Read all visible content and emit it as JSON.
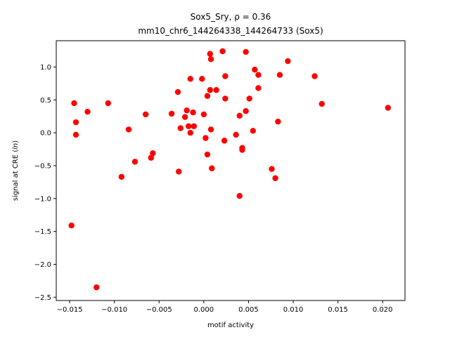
{
  "chart_data": {
    "type": "scatter",
    "title_line1": "Sox5_Sry, ρ = 0.36",
    "title_line2": "mm10_chr6_144264338_144264733 (Sox5)",
    "xlabel": "motif activity",
    "ylabel": "signal at CRE (ln)",
    "xlim": [
      -0.0165,
      0.0225
    ],
    "ylim": [
      -2.55,
      1.4
    ],
    "xticks": [
      -0.015,
      -0.01,
      -0.005,
      0.0,
      0.005,
      0.01,
      0.015,
      0.02
    ],
    "xtick_labels": [
      "−0.015",
      "−0.010",
      "−0.005",
      "0.000",
      "0.005",
      "0.010",
      "0.015",
      "0.020"
    ],
    "yticks": [
      -2.5,
      -2.0,
      -1.5,
      -1.0,
      -0.5,
      0.0,
      0.5,
      1.0
    ],
    "ytick_labels": [
      "−2.5",
      "−2.0",
      "−1.5",
      "−1.0",
      "−0.5",
      "0.0",
      "0.5",
      "1.0"
    ],
    "grid": false,
    "marker_color": "#ff0000",
    "points": [
      {
        "x": -0.0148,
        "y": -1.41
      },
      {
        "x": -0.0145,
        "y": 0.45
      },
      {
        "x": -0.0143,
        "y": 0.16
      },
      {
        "x": -0.0143,
        "y": -0.03
      },
      {
        "x": -0.013,
        "y": 0.32
      },
      {
        "x": -0.012,
        "y": -2.35
      },
      {
        "x": -0.0107,
        "y": 0.45
      },
      {
        "x": -0.0092,
        "y": -0.67
      },
      {
        "x": -0.0084,
        "y": 0.05
      },
      {
        "x": -0.0077,
        "y": -0.44
      },
      {
        "x": -0.0065,
        "y": 0.28
      },
      {
        "x": -0.0059,
        "y": -0.38
      },
      {
        "x": -0.0057,
        "y": -0.31
      },
      {
        "x": -0.0036,
        "y": 0.29
      },
      {
        "x": -0.0029,
        "y": 0.62
      },
      {
        "x": -0.0028,
        "y": -0.59
      },
      {
        "x": -0.0026,
        "y": 0.07
      },
      {
        "x": -0.0021,
        "y": 0.24
      },
      {
        "x": -0.0019,
        "y": 0.34
      },
      {
        "x": -0.0017,
        "y": 0.1
      },
      {
        "x": -0.0015,
        "y": 0.82
      },
      {
        "x": -0.0015,
        "y": 0.0
      },
      {
        "x": -0.0012,
        "y": 0.31
      },
      {
        "x": -0.0011,
        "y": 0.1
      },
      {
        "x": -0.0002,
        "y": 0.82
      },
      {
        "x": 0.0,
        "y": 0.28
      },
      {
        "x": 0.0002,
        "y": -0.08
      },
      {
        "x": 0.0004,
        "y": 0.56
      },
      {
        "x": 0.0004,
        "y": -0.33
      },
      {
        "x": 0.0007,
        "y": 1.2
      },
      {
        "x": 0.0007,
        "y": 0.65
      },
      {
        "x": 0.0008,
        "y": 1.12
      },
      {
        "x": 0.0008,
        "y": 0.05
      },
      {
        "x": 0.0009,
        "y": -0.54
      },
      {
        "x": 0.0014,
        "y": 0.65
      },
      {
        "x": 0.0021,
        "y": 1.24
      },
      {
        "x": 0.0023,
        "y": -0.12
      },
      {
        "x": 0.0024,
        "y": 0.86
      },
      {
        "x": 0.0024,
        "y": 0.52
      },
      {
        "x": 0.0036,
        "y": -0.03
      },
      {
        "x": 0.004,
        "y": 0.26
      },
      {
        "x": 0.004,
        "y": -0.96
      },
      {
        "x": 0.0043,
        "y": -0.23
      },
      {
        "x": 0.0043,
        "y": -0.26
      },
      {
        "x": 0.0047,
        "y": 1.23
      },
      {
        "x": 0.0047,
        "y": 0.33
      },
      {
        "x": 0.0051,
        "y": 0.52
      },
      {
        "x": 0.0055,
        "y": 0.03
      },
      {
        "x": 0.0057,
        "y": 0.96
      },
      {
        "x": 0.0061,
        "y": 0.88
      },
      {
        "x": 0.0061,
        "y": 0.68
      },
      {
        "x": 0.0076,
        "y": -0.55
      },
      {
        "x": 0.008,
        "y": -0.69
      },
      {
        "x": 0.0083,
        "y": 0.17
      },
      {
        "x": 0.0085,
        "y": 0.88
      },
      {
        "x": 0.0094,
        "y": 1.09
      },
      {
        "x": 0.0124,
        "y": 0.86
      },
      {
        "x": 0.0132,
        "y": 0.44
      },
      {
        "x": 0.0206,
        "y": 0.38
      }
    ]
  }
}
